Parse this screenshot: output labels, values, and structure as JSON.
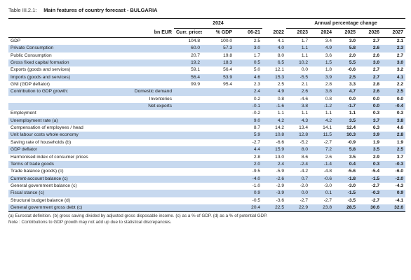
{
  "table_number": "Table III.2.1:",
  "title": "Main features of country forecast - BULGARIA",
  "header": {
    "year_label": "2024",
    "annual_label": "Annual percentage change",
    "units": "bn EUR",
    "curr_prices": "Curr. prices",
    "pct_gdp": "% GDP",
    "c0621": "06-21",
    "y2022": "2022",
    "y2023": "2023",
    "y2024": "2024",
    "y2025": "2025",
    "y2026": "2026",
    "y2027": "2027"
  },
  "rows": [
    {
      "label": "GDP",
      "sub": "",
      "v": [
        "104.8",
        "100.0",
        "2.5",
        "4.1",
        "1.7",
        "3.4",
        "3.0",
        "2.7",
        "2.1"
      ],
      "hl": false
    },
    {
      "label": "Private Consumption",
      "sub": "",
      "v": [
        "60.0",
        "57.3",
        "3.0",
        "4.0",
        "1.1",
        "4.9",
        "5.8",
        "2.6",
        "2.3"
      ],
      "hl": true
    },
    {
      "label": "Public Consumption",
      "sub": "",
      "v": [
        "20.7",
        "19.8",
        "1.7",
        "8.0",
        "1.1",
        "3.6",
        "2.0",
        "2.6",
        "2.7"
      ],
      "hl": false
    },
    {
      "label": "Gross fixed capital formation",
      "sub": "",
      "v": [
        "19.2",
        "18.3",
        "0.5",
        "6.5",
        "10.2",
        "1.5",
        "5.5",
        "3.0",
        "3.0"
      ],
      "hl": true
    },
    {
      "label": "Exports (goods and services)",
      "sub": "",
      "v": [
        "59.1",
        "56.4",
        "5.0",
        "12.1",
        "0.0",
        "1.8",
        "-0.6",
        "2.7",
        "3.2"
      ],
      "hl": false
    },
    {
      "label": "Imports (goods and services)",
      "sub": "",
      "v": [
        "56.4",
        "53.9",
        "4.6",
        "15.3",
        "-5.5",
        "3.9",
        "2.5",
        "2.7",
        "4.1"
      ],
      "hl": true
    },
    {
      "label": "GNI (GDP deflator)",
      "sub": "",
      "v": [
        "99.9",
        "95.4",
        "2.3",
        "2.5",
        "2.1",
        "2.8",
        "3.3",
        "2.8",
        "2.2"
      ],
      "hl": false
    },
    {
      "label": "Contribution to GDP growth:",
      "sub": "Domestic demand",
      "v": [
        "",
        "",
        "2.4",
        "4.9",
        "2.6",
        "3.8",
        "4.7",
        "2.6",
        "2.5"
      ],
      "hl": true
    },
    {
      "label": "",
      "sub": "Inventories",
      "v": [
        "",
        "",
        "0.2",
        "0.8",
        "-4.6",
        "0.8",
        "0.0",
        "0.0",
        "0.0"
      ],
      "hl": false
    },
    {
      "label": "",
      "sub": "Net exports",
      "v": [
        "",
        "",
        "-0.1",
        "-1.6",
        "3.8",
        "-1.2",
        "-1.7",
        "0.0",
        "-0.4"
      ],
      "hl": true
    },
    {
      "label": "Employment",
      "sub": "",
      "v": [
        "",
        "",
        "-0.2",
        "1.1",
        "1.1",
        "1.1",
        "1.1",
        "0.3",
        "0.3"
      ],
      "hl": false
    },
    {
      "label": "Unemployment rate (a)",
      "sub": "",
      "v": [
        "",
        "",
        "9.0",
        "4.2",
        "4.3",
        "4.2",
        "3.5",
        "3.7",
        "3.8"
      ],
      "hl": true
    },
    {
      "label": "Compensation of employees / head",
      "sub": "",
      "v": [
        "",
        "",
        "8.7",
        "14.2",
        "13.4",
        "14.1",
        "12.4",
        "6.3",
        "4.6"
      ],
      "hl": false
    },
    {
      "label": "Unit labour costs whole economy",
      "sub": "",
      "v": [
        "",
        "",
        "5.9",
        "10.8",
        "12.8",
        "11.5",
        "10.3",
        "3.9",
        "2.8"
      ],
      "hl": true
    },
    {
      "label": "Saving rate of households (b)",
      "sub": "",
      "v": [
        "",
        "",
        "-2.7",
        "-6.6",
        "-5.2",
        "-2.7",
        "-0.9",
        "1.9",
        "1.9"
      ],
      "hl": false
    },
    {
      "label": "GDP deflator",
      "sub": "",
      "v": [
        "",
        "",
        "4.4",
        "15.9",
        "8.0",
        "7.2",
        "5.8",
        "3.5",
        "2.5"
      ],
      "hl": true
    },
    {
      "label": "Harmonised index of consumer prices",
      "sub": "",
      "v": [
        "",
        "",
        "2.8",
        "13.0",
        "8.6",
        "2.6",
        "3.5",
        "2.9",
        "3.7"
      ],
      "hl": false
    },
    {
      "label": "Terms of trade goods",
      "sub": "",
      "v": [
        "",
        "",
        "2.0",
        "2.4",
        "-2.4",
        "-1.4",
        "0.4",
        "0.3",
        "-0.3"
      ],
      "hl": true
    },
    {
      "label": "Trade balance (goods) (c)",
      "sub": "",
      "v": [
        "",
        "",
        "-9.5",
        "-5.9",
        "-4.2",
        "-4.8",
        "-5.6",
        "-5.4",
        "-6.0"
      ],
      "hl": false
    },
    {
      "label": "Current-account balance (c)",
      "sub": "",
      "v": [
        "",
        "",
        "-4.0",
        "-2.6",
        "0.7",
        "-0.6",
        "-1.8",
        "-1.5",
        "-2.0"
      ],
      "hl": true
    },
    {
      "label": "General government balance (c)",
      "sub": "",
      "v": [
        "",
        "",
        "-1.0",
        "-2.9",
        "-2.0",
        "-3.0",
        "-3.0",
        "-2.7",
        "-4.3"
      ],
      "hl": false
    },
    {
      "label": "Fiscal stance (c)",
      "sub": "",
      "v": [
        "",
        "",
        "0.9",
        "-3.9",
        "0.0",
        "0.1",
        "-1.5",
        "-0.3",
        "0.9"
      ],
      "hl": true
    },
    {
      "label": "Structural budget balance (d)",
      "sub": "",
      "v": [
        "",
        "",
        "-0.5",
        "-3.6",
        "-2.7",
        "-2.7",
        "-3.5",
        "-2.7",
        "-4.1"
      ],
      "hl": false
    },
    {
      "label": "General government gross debt (c)",
      "sub": "",
      "v": [
        "",
        "",
        "20.4",
        "22.5",
        "22.9",
        "23.8",
        "28.5",
        "30.6",
        "32.6"
      ],
      "hl": true
    }
  ],
  "notes": [
    "(a) Eurostat definition.  (b) gross saving divided by adjusted gross disposable income.  (c) as a % of GDP.  (d) as a % of potential GDP.",
    "Note : Contributions to GDP growth may not add up due to statistical discrepancies."
  ]
}
